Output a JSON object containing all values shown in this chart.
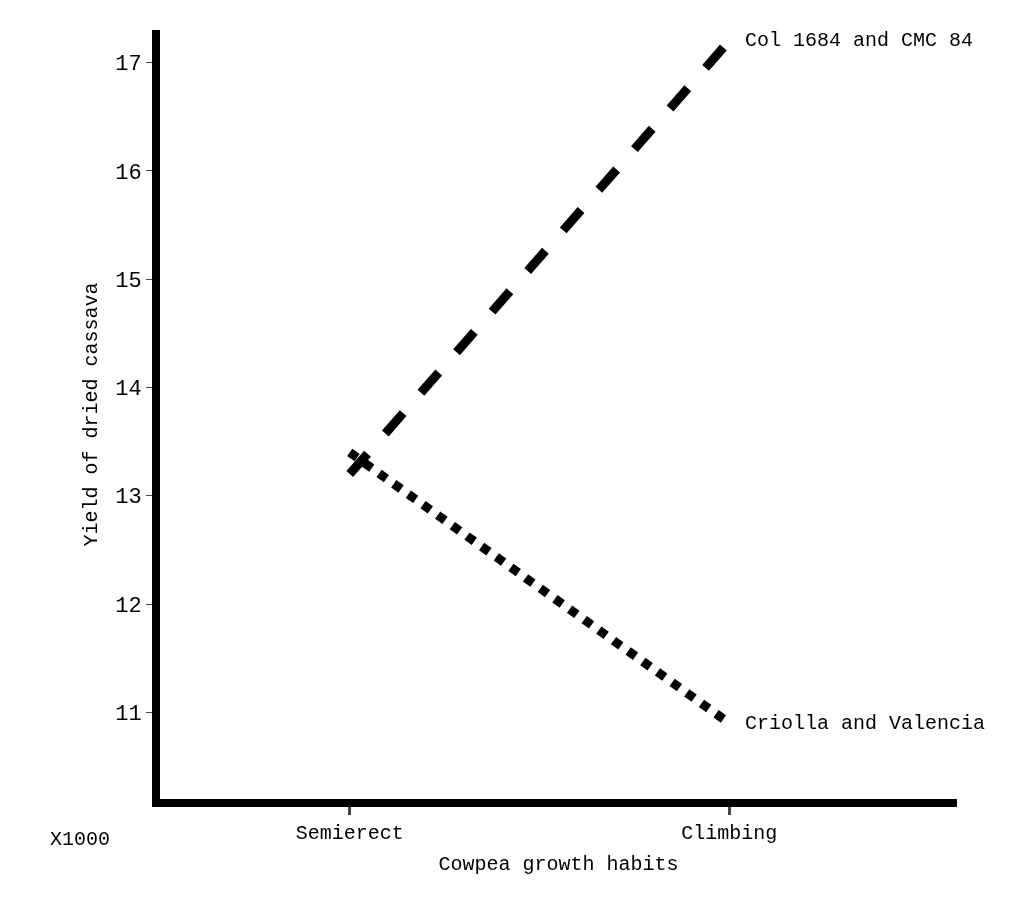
{
  "chart_data": {
    "type": "line",
    "xlabel": "Cowpea growth habits",
    "ylabel": "Yield of dried cassava",
    "categories": [
      "Semierect",
      "Climbing"
    ],
    "series": [
      {
        "name": "Col 1684 and CMC 84",
        "color": "#000000",
        "values": [
          13.2,
          17.2
        ],
        "line_style": "dashed"
      },
      {
        "name": "Criolla and Valencia",
        "color": "#000000",
        "values": [
          13.4,
          10.9
        ],
        "line_style": "dotted"
      }
    ],
    "ylim": [
      10.2,
      17.3
    ],
    "yticks": [
      11,
      12,
      13,
      14,
      15,
      16,
      17
    ],
    "annotations": [
      "X1000"
    ],
    "legend": false,
    "marker": "none"
  }
}
